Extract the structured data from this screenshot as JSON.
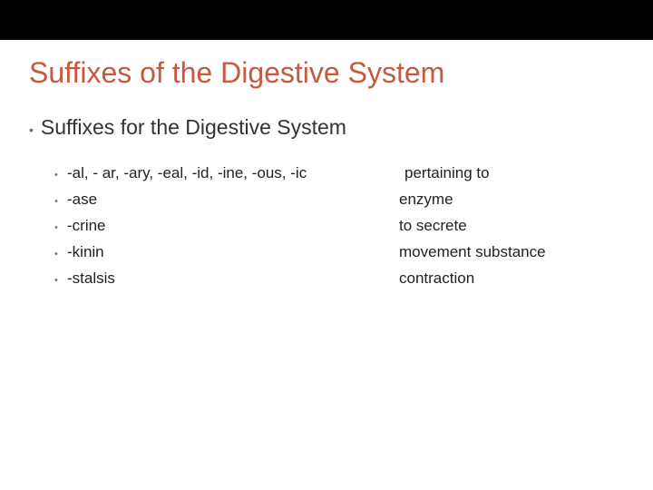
{
  "title": "Suffixes of the Digestive System",
  "subtitle": "Suffixes for the Digestive System",
  "colors": {
    "title_color": "#c55a3e",
    "text_color": "#222222",
    "bullet_color": "#7a7a7a",
    "background": "#ffffff",
    "bar_color": "#000000"
  },
  "typography": {
    "title_fontsize": 32,
    "subtitle_fontsize": 23,
    "body_fontsize": 17,
    "font_family": "Arial"
  },
  "items": [
    {
      "suffix": "-al, - ar, -ary, -eal, -id, -ine, -ous, -ic",
      "meaning": " pertaining to"
    },
    {
      "suffix": "-ase",
      "meaning": "enzyme"
    },
    {
      "suffix": "-crine",
      "meaning": "to secrete"
    },
    {
      "suffix": "-kinin",
      "meaning": "movement substance"
    },
    {
      "suffix": "-stalsis",
      "meaning": "contraction"
    }
  ]
}
